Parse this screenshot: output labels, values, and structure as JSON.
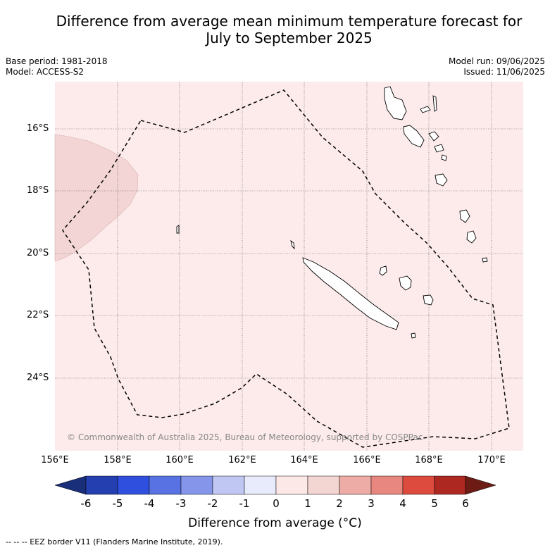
{
  "title_line1": "Difference from average mean minimum temperature forecast for",
  "title_line2": "July to September 2025",
  "base_period": "Base period: 1981-2018",
  "model": "Model: ACCESS-S2",
  "model_run": "Model run: 09/06/2025",
  "issued": "Issued: 11/06/2025",
  "lat_labels": [
    "16°S",
    "18°S",
    "20°S",
    "22°S",
    "24°S"
  ],
  "lon_labels": [
    "156°E",
    "158°E",
    "160°E",
    "162°E",
    "164°E",
    "166°E",
    "168°E",
    "170°E"
  ],
  "copyright": "© Commonwealth of Australia 2025, Bureau of Meteorology, supported by COSPPac",
  "colorbar": {
    "title": "Difference from average (°C)",
    "ticks": [
      "-6",
      "-5",
      "-4",
      "-3",
      "-2",
      "-1",
      "0",
      "1",
      "2",
      "3",
      "4",
      "5",
      "6"
    ],
    "colors": {
      "below_min": "#1a2f7a",
      "c_-6_-5": "#2440b0",
      "c_-5_-4": "#2f4fdf",
      "c_-4_-3": "#5872e3",
      "c_-3_-2": "#8596ea",
      "c_-2_-1": "#c1c7f3",
      "c_-1_0": "#e8ebfb",
      "c_0_1": "#fce9e7",
      "c_1_2": "#f3d5d2",
      "c_2_3": "#eeaca7",
      "c_3_4": "#e8877f",
      "c_4_5": "#dd4a3e",
      "c_5_6": "#ae2822",
      "above_max": "#6d1b15"
    }
  },
  "footer": "--  --  -- EEZ border V11 (Flanders Marine Institute, 2019)."
}
